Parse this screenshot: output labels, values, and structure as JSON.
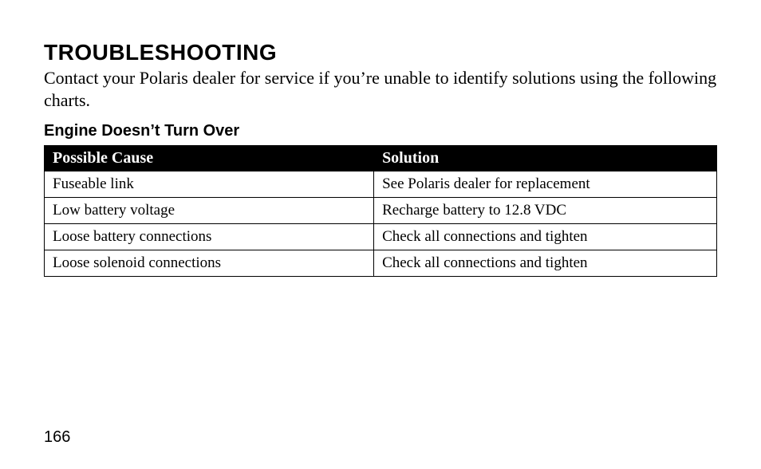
{
  "title": "TROUBLESHOOTING",
  "intro": "Contact your Polaris dealer for service if you’re unable to identify solutions using the following charts.",
  "section_heading": "Engine Doesn’t Turn Over",
  "table": {
    "columns": [
      "Possible Cause",
      "Solution"
    ],
    "column_widths_pct": [
      49,
      51
    ],
    "header_bg": "#000000",
    "header_text_color": "#ffffff",
    "border_color": "#000000",
    "cell_font_family": "Times New Roman",
    "cell_font_size_pt": 14,
    "rows": [
      [
        "Fuseable link",
        "See Polaris dealer for replacement"
      ],
      [
        "Low battery voltage",
        "Recharge battery to 12.8 VDC"
      ],
      [
        "Loose battery connections",
        "Check all connections and tighten"
      ],
      [
        "Loose solenoid connections",
        "Check all connections and tighten"
      ]
    ]
  },
  "page_number": "166",
  "background_color": "#ffffff",
  "title_font": {
    "family": "Arial",
    "weight": 700,
    "size_pt": 21
  },
  "intro_font": {
    "family": "Times New Roman",
    "weight": 400,
    "size_pt": 16
  },
  "subhead_font": {
    "family": "Arial",
    "weight": 700,
    "size_pt": 15
  },
  "page_number_font": {
    "family": "Arial",
    "weight": 400,
    "size_pt": 15
  }
}
